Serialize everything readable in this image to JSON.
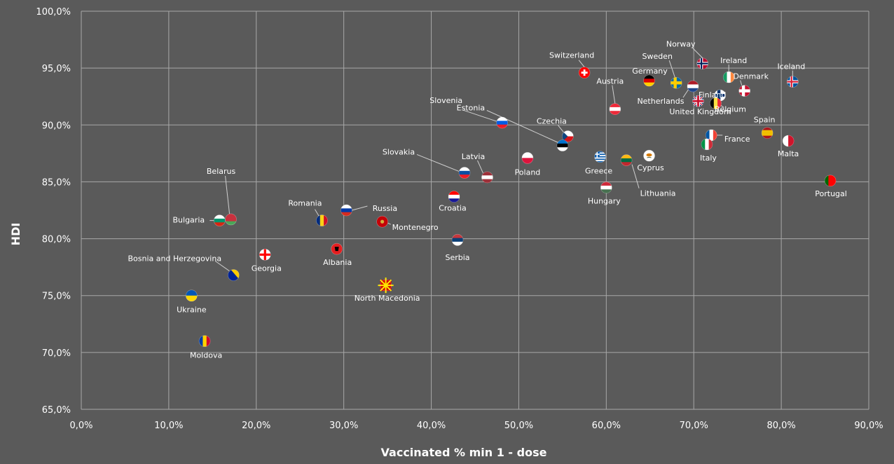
{
  "chart_data": {
    "type": "scatter",
    "title": "",
    "xlabel": "Vaccinated % min 1 - dose",
    "ylabel": "HDI",
    "xlim": [
      0,
      90
    ],
    "ylim": [
      65,
      100
    ],
    "x_ticks": [
      "0,0%",
      "10,0%",
      "20,0%",
      "30,0%",
      "40,0%",
      "50,0%",
      "60,0%",
      "70,0%",
      "80,0%",
      "90,0%"
    ],
    "y_ticks": [
      "65,0%",
      "70,0%",
      "75,0%",
      "80,0%",
      "85,0%",
      "90,0%",
      "95,0%",
      "100,0%"
    ],
    "grid": true,
    "legend": "none",
    "points": [
      {
        "name": "Switzerland",
        "x": 57.5,
        "y": 94.6,
        "flag": "CH"
      },
      {
        "name": "Norway",
        "x": 71.0,
        "y": 95.4,
        "flag": "NO"
      },
      {
        "name": "Ireland",
        "x": 74.0,
        "y": 94.2,
        "flag": "IE"
      },
      {
        "name": "Iceland",
        "x": 81.3,
        "y": 93.8,
        "flag": "IS"
      },
      {
        "name": "Germany",
        "x": 64.9,
        "y": 93.9,
        "flag": "DE"
      },
      {
        "name": "Sweden",
        "x": 68.0,
        "y": 93.7,
        "flag": "SE"
      },
      {
        "name": "Netherlands",
        "x": 69.9,
        "y": 93.4,
        "flag": "NL"
      },
      {
        "name": "Denmark",
        "x": 75.8,
        "y": 93.0,
        "flag": "DK"
      },
      {
        "name": "Finland",
        "x": 73.0,
        "y": 92.6,
        "flag": "FI"
      },
      {
        "name": "Austria",
        "x": 61.0,
        "y": 91.4,
        "flag": "AT"
      },
      {
        "name": "United Kingdom",
        "x": 70.5,
        "y": 92.1,
        "flag": "GB"
      },
      {
        "name": "Belgium",
        "x": 72.5,
        "y": 91.9,
        "flag": "BE"
      },
      {
        "name": "Slovenia",
        "x": 48.1,
        "y": 90.2,
        "flag": "SI"
      },
      {
        "name": "Czechia",
        "x": 55.6,
        "y": 89.0,
        "flag": "CZ"
      },
      {
        "name": "Estonia",
        "x": 55.0,
        "y": 88.2,
        "flag": "EE"
      },
      {
        "name": "Spain",
        "x": 78.4,
        "y": 89.3,
        "flag": "ES"
      },
      {
        "name": "France",
        "x": 72.0,
        "y": 89.1,
        "flag": "FR"
      },
      {
        "name": "Malta",
        "x": 80.8,
        "y": 88.6,
        "flag": "MT"
      },
      {
        "name": "Italy",
        "x": 71.5,
        "y": 88.3,
        "flag": "IT"
      },
      {
        "name": "Poland",
        "x": 51.0,
        "y": 87.1,
        "flag": "PL"
      },
      {
        "name": "Greece",
        "x": 59.3,
        "y": 87.2,
        "flag": "GR"
      },
      {
        "name": "Cyprus",
        "x": 64.9,
        "y": 87.3,
        "flag": "CY"
      },
      {
        "name": "Lithuania",
        "x": 62.3,
        "y": 86.9,
        "flag": "LT"
      },
      {
        "name": "Slovakia",
        "x": 43.8,
        "y": 85.8,
        "flag": "SK"
      },
      {
        "name": "Latvia",
        "x": 46.4,
        "y": 85.4,
        "flag": "LV"
      },
      {
        "name": "Portugal",
        "x": 85.6,
        "y": 85.1,
        "flag": "PT"
      },
      {
        "name": "Hungary",
        "x": 60.0,
        "y": 84.5,
        "flag": "HU"
      },
      {
        "name": "Croatia",
        "x": 42.6,
        "y": 83.7,
        "flag": "HR"
      },
      {
        "name": "Russia",
        "x": 30.3,
        "y": 82.5,
        "flag": "RU"
      },
      {
        "name": "Belarus",
        "x": 17.1,
        "y": 81.7,
        "flag": "BY"
      },
      {
        "name": "Bulgaria",
        "x": 15.8,
        "y": 81.6,
        "flag": "BG"
      },
      {
        "name": "Romania",
        "x": 27.5,
        "y": 81.6,
        "flag": "RO"
      },
      {
        "name": "Montenegro",
        "x": 34.4,
        "y": 81.5,
        "flag": "ME"
      },
      {
        "name": "Serbia",
        "x": 43.0,
        "y": 79.9,
        "flag": "RS"
      },
      {
        "name": "Albania",
        "x": 29.2,
        "y": 79.1,
        "flag": "AL"
      },
      {
        "name": "Georgia",
        "x": 21.0,
        "y": 78.6,
        "flag": "GE"
      },
      {
        "name": "Bosnia and Herzegovina",
        "x": 17.4,
        "y": 76.8,
        "flag": "BA"
      },
      {
        "name": "North Macedonia",
        "x": 34.8,
        "y": 75.9,
        "flag": "MK"
      },
      {
        "name": "Ukraine",
        "x": 12.6,
        "y": 75.0,
        "flag": "UA"
      },
      {
        "name": "Moldova",
        "x": 14.1,
        "y": 71.0,
        "flag": "MD"
      }
    ]
  }
}
